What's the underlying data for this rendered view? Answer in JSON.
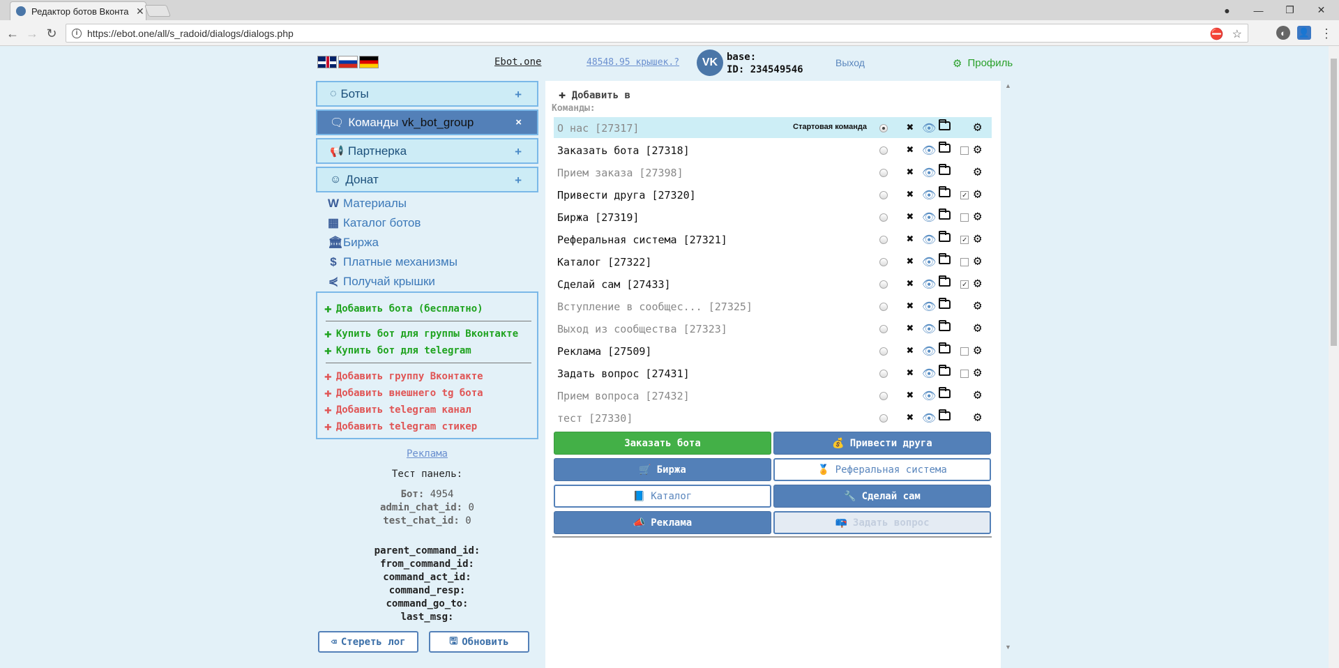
{
  "browser": {
    "tab_title": "Редактор ботов Вконтакте",
    "url": "https://ebot.one/all/s_radoid/dialogs/dialogs.php"
  },
  "header": {
    "site_link": "Ebot.one",
    "balance": "48548.95 крышек.",
    "base_label": "base:",
    "id_label": "ID: 234549546",
    "logout": "Выход",
    "profile": "Профиль"
  },
  "sidebar": {
    "menu": [
      {
        "label": "Боты",
        "action": "+"
      },
      {
        "label": "Команды",
        "sub": "vk_bot_group",
        "action": "×"
      },
      {
        "label": "Партнерка",
        "action": "+"
      },
      {
        "label": "Донат",
        "action": "+"
      }
    ],
    "links": [
      "Материалы",
      "Каталог ботов",
      "Биржа",
      "Платные механизмы",
      "Получай крышки"
    ],
    "actions_green": [
      "Добавить бота (бесплатно)",
      "Купить бот для группы Вконтакте",
      "Купить бот для telegram"
    ],
    "actions_red": [
      "Добавить группу Вконтакте",
      "Добавить внешнего tg бота",
      "Добавить telegram канал",
      "Добавить telegram стикер"
    ],
    "ad_link": "Реклама",
    "test_panel": "Тест панель:",
    "bot_label": "Бот:",
    "bot_value": "4954",
    "admin_chat_label": "admin_chat_id:",
    "admin_chat_value": "0",
    "test_chat_label": "test_chat_id:",
    "test_chat_value": "0",
    "vars": [
      "parent_command_id:",
      "from_command_id:",
      "command_act_id:",
      "command_resp:",
      "command_go_to:",
      "last_msg:"
    ],
    "clear_log": "Стереть лог",
    "refresh": "Обновить"
  },
  "main": {
    "add_in": "Добавить в",
    "commands_label": "Команды:",
    "start_command_label": "Стартовая команда",
    "commands": [
      {
        "name": "О нас [27317]",
        "grey": true,
        "start": true,
        "check": null
      },
      {
        "name": "Заказать бота [27318]",
        "grey": false,
        "start": false,
        "check": "off"
      },
      {
        "name": "Прием заказа [27398]",
        "grey": true,
        "start": false,
        "check": null
      },
      {
        "name": "Привести друга [27320]",
        "grey": false,
        "start": false,
        "check": "on"
      },
      {
        "name": "Биржа [27319]",
        "grey": false,
        "start": false,
        "check": "off"
      },
      {
        "name": "Реферальная система [27321]",
        "grey": false,
        "start": false,
        "check": "on"
      },
      {
        "name": "Каталог [27322]",
        "grey": false,
        "start": false,
        "check": "off"
      },
      {
        "name": "Сделай сам [27433]",
        "grey": false,
        "start": false,
        "check": "on"
      },
      {
        "name": "Вступление в сообщес... [27325]",
        "grey": true,
        "start": false,
        "check": null
      },
      {
        "name": "Выход из сообщества [27323]",
        "grey": true,
        "start": false,
        "check": null
      },
      {
        "name": "Реклама [27509]",
        "grey": false,
        "start": false,
        "check": "off"
      },
      {
        "name": "Задать вопрос [27431]",
        "grey": false,
        "start": false,
        "check": "off"
      },
      {
        "name": "Прием вопроса [27432]",
        "grey": true,
        "start": false,
        "check": null
      },
      {
        "name": "тест [27330]",
        "grey": true,
        "start": false,
        "check": null
      }
    ],
    "keyboard": [
      {
        "label": "Заказать бота",
        "style": "green",
        "emoji": ""
      },
      {
        "label": "Привести друга",
        "style": "blue",
        "emoji": "💰"
      },
      {
        "label": "Биржа",
        "style": "blue",
        "emoji": "🛒"
      },
      {
        "label": "Реферальная система",
        "style": "white",
        "emoji": "🏅"
      },
      {
        "label": "Каталог",
        "style": "white",
        "emoji": "📘"
      },
      {
        "label": "Сделай сам",
        "style": "blue",
        "emoji": "🔧"
      },
      {
        "label": "Реклама",
        "style": "blue",
        "emoji": "📣"
      },
      {
        "label": "Задать вопрос",
        "style": "grey",
        "emoji": "📪"
      }
    ]
  }
}
